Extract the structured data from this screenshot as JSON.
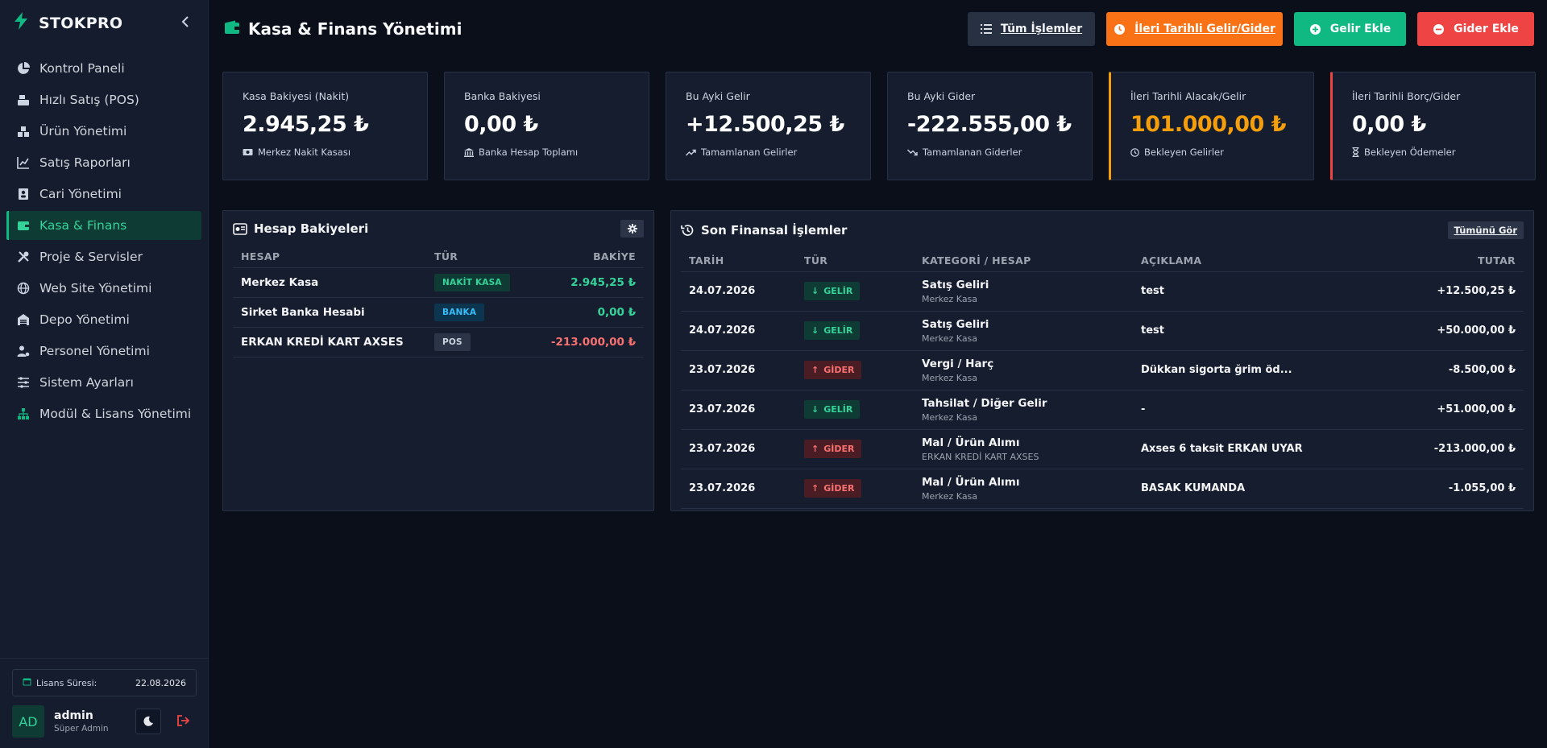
{
  "sidebar": {
    "brand": "STOKPRO",
    "items": [
      {
        "label": "Kontrol Paneli",
        "icon": "pie-chart-icon"
      },
      {
        "label": "Hızlı Satış (POS)",
        "icon": "cash-register-icon"
      },
      {
        "label": "Ürün Yönetimi",
        "icon": "boxes-icon"
      },
      {
        "label": "Satış Raporları",
        "icon": "line-chart-icon"
      },
      {
        "label": "Cari Yönetimi",
        "icon": "contact-card-icon"
      },
      {
        "label": "Kasa & Finans",
        "icon": "wallet-icon",
        "active": true
      },
      {
        "label": "Proje & Servisler",
        "icon": "tools-icon"
      },
      {
        "label": "Web Site Yönetimi",
        "icon": "globe-icon"
      },
      {
        "label": "Depo Yönetimi",
        "icon": "warehouse-icon"
      },
      {
        "label": "Personel Yönetimi",
        "icon": "user-gear-icon"
      },
      {
        "label": "Sistem Ayarları",
        "icon": "sliders-icon"
      },
      {
        "label": "Modül & Lisans Yönetimi",
        "icon": "sitemap-icon"
      }
    ],
    "license": {
      "label": "Lisans Süresi:",
      "date": "22.08.2026"
    },
    "user": {
      "initials": "AD",
      "name": "admin",
      "role": "Süper Admin"
    }
  },
  "header": {
    "title": "Kasa & Finans Yönetimi",
    "buttons": {
      "all": "Tüm İşlemler",
      "future": "İleri Tarihli Gelir/Gider",
      "income": "Gelir Ekle",
      "expense": "Gider Ekle"
    }
  },
  "cards": [
    {
      "label": "Kasa Bakiyesi (Nakit)",
      "value": "2.945,25 ₺",
      "sub": "Merkez Nakit Kasası",
      "icon": "money-bill-icon"
    },
    {
      "label": "Banka Bakiyesi",
      "value": "0,00 ₺",
      "sub": "Banka Hesap Toplamı",
      "icon": "bank-icon"
    },
    {
      "label": "Bu Ayki Gelir",
      "value": "+12.500,25 ₺",
      "sub": "Tamamlanan Gelirler",
      "icon": "trend-up-icon"
    },
    {
      "label": "Bu Ayki Gider",
      "value": "-222.555,00 ₺",
      "sub": "Tamamlanan Giderler",
      "icon": "trend-down-icon"
    },
    {
      "label": "İleri Tarihli Alacak/Gelir",
      "value": "101.000,00 ₺",
      "sub": "Bekleyen Gelirler",
      "icon": "clock-icon",
      "accent": "#f59e0b"
    },
    {
      "label": "İleri Tarihli Borç/Gider",
      "value": "0,00 ₺",
      "sub": "Bekleyen Ödemeler",
      "icon": "hourglass-icon",
      "accent": "#ef4444"
    }
  ],
  "accounts": {
    "title": "Hesap Bakiyeleri",
    "headers": [
      "HESAP",
      "TÜR",
      "BAKİYE"
    ],
    "rows": [
      {
        "name": "Merkez Kasa",
        "type": "NAKİT KASA",
        "balance": "2.945,25 ₺"
      },
      {
        "name": "Sirket Banka Hesabi",
        "type": "BANKA",
        "balance": "0,00 ₺"
      },
      {
        "name": "ERKAN KREDİ KART AXSES",
        "type": "POS",
        "balance": "-213.000,00 ₺"
      }
    ]
  },
  "transactions": {
    "title": "Son Finansal İşlemler",
    "see_all": "Tümünü Gör",
    "headers": [
      "TARİH",
      "TÜR",
      "KATEGORİ / HESAP",
      "AÇIKLAMA",
      "TUTAR"
    ],
    "rows": [
      {
        "date": "24.07.2026",
        "type": "GELİR",
        "category": "Satış Geliri",
        "account": "Merkez Kasa",
        "desc": "test",
        "amount": "+12.500,25 ₺"
      },
      {
        "date": "24.07.2026",
        "type": "GELİR",
        "category": "Satış Geliri",
        "account": "Merkez Kasa",
        "desc": "test",
        "amount": "+50.000,00 ₺"
      },
      {
        "date": "23.07.2026",
        "type": "GİDER",
        "category": "Vergi / Harç",
        "account": "Merkez Kasa",
        "desc": "Dükkan sigorta ğrim öd...",
        "amount": "-8.500,00 ₺"
      },
      {
        "date": "23.07.2026",
        "type": "GELİR",
        "category": "Tahsilat / Diğer Gelir",
        "account": "Merkez Kasa",
        "desc": "-",
        "amount": "+51.000,00 ₺"
      },
      {
        "date": "23.07.2026",
        "type": "GİDER",
        "category": "Mal / Ürün Alımı",
        "account": "ERKAN KREDİ KART AXSES",
        "desc": "Axses 6 taksit ERKAN UYAR",
        "amount": "-213.000,00 ₺"
      },
      {
        "date": "23.07.2026",
        "type": "GİDER",
        "category": "Mal / Ürün Alımı",
        "account": "Merkez Kasa",
        "desc": "BASAK KUMANDA",
        "amount": "-1.055,00 ₺"
      }
    ]
  },
  "colors": {
    "accent": "#10b981",
    "income": "#34d399",
    "expense": "#f87171",
    "warning": "#f59e0b"
  }
}
